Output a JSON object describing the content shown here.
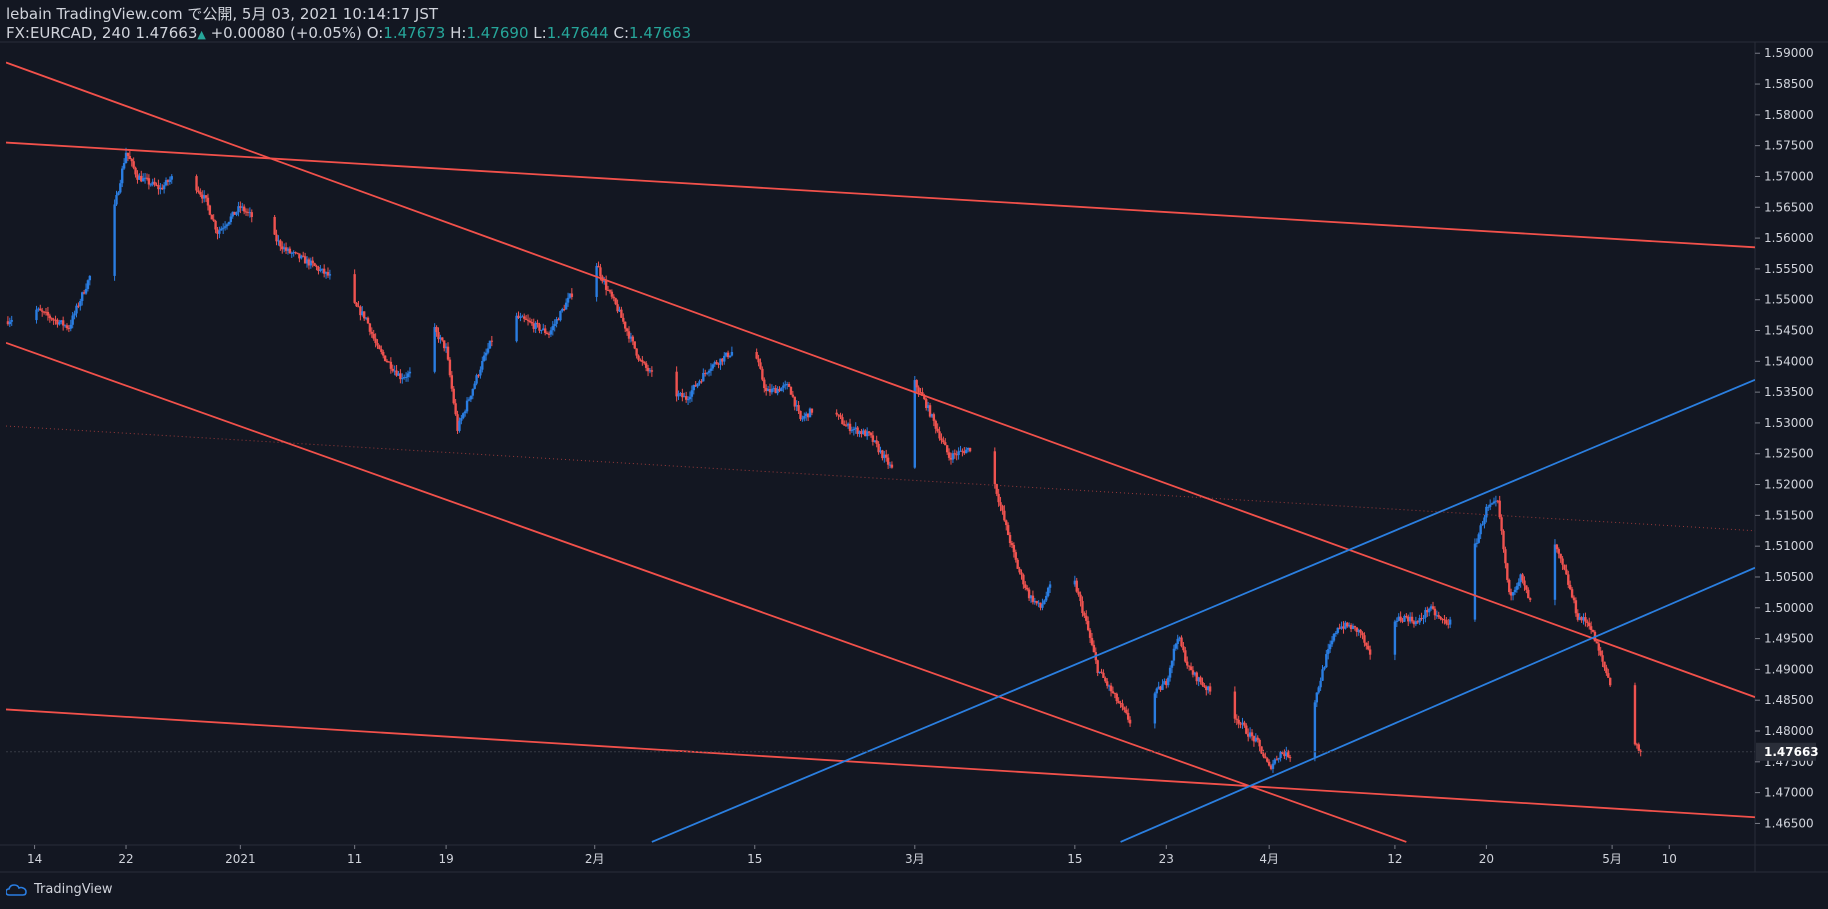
{
  "header": {
    "publisher_line": "lebain TradingView.com で公開, 5月 03, 2021 10:14:17 JST",
    "symbol_interval": "FX:EURCAD, 240",
    "last_price": "1.47663",
    "change": "+0.00080 (+0.05%)",
    "o_label": "O:",
    "o_value": "1.47673",
    "h_label": "H:",
    "h_value": "1.47690",
    "l_label": "L:",
    "l_value": "1.47644",
    "c_label": "C:",
    "c_value": "1.47663"
  },
  "footer": {
    "brand": "TradingView"
  },
  "colors": {
    "background": "#131722",
    "up": "#2a7de1",
    "down": "#ef5350",
    "red_line": "#f2514b",
    "blue_line": "#2b7fe0",
    "grid": "#2a2e39",
    "text": "#d1d4dc",
    "price_tag_bg": "#2a2e39"
  },
  "chart_data": {
    "type": "candlestick",
    "symbol": "FX:EURCAD",
    "interval": "240",
    "ylim": [
      1.4615,
      1.5915
    ],
    "price_ticks": [
      "1.59000",
      "1.58500",
      "1.58000",
      "1.57500",
      "1.57000",
      "1.56500",
      "1.56000",
      "1.55500",
      "1.55000",
      "1.54500",
      "1.54000",
      "1.53500",
      "1.53000",
      "1.52500",
      "1.52000",
      "1.51500",
      "1.51000",
      "1.50500",
      "1.50000",
      "1.49500",
      "1.49000",
      "1.48500",
      "1.48000",
      "1.47500",
      "1.47000",
      "1.46500"
    ],
    "current_price": "1.47663",
    "x_ticks": [
      {
        "label": "14",
        "day": 0
      },
      {
        "label": "22",
        "day": 8
      },
      {
        "label": "2021",
        "day": 18
      },
      {
        "label": "11",
        "day": 28
      },
      {
        "label": "19",
        "day": 36
      },
      {
        "label": "2月",
        "day": 49
      },
      {
        "label": "15",
        "day": 63
      },
      {
        "label": "3月",
        "day": 77
      },
      {
        "label": "15",
        "day": 91
      },
      {
        "label": "23",
        "day": 99
      },
      {
        "label": "4月",
        "day": 108
      },
      {
        "label": "12",
        "day": 119
      },
      {
        "label": "20",
        "day": 127
      },
      {
        "label": "5月",
        "day": 138
      },
      {
        "label": "10",
        "day": 143
      }
    ],
    "day_range": [
      -2.5,
      150.5
    ],
    "price_path": [
      [
        -2.5,
        1.5465
      ],
      [
        0,
        1.5485
      ],
      [
        3,
        1.5455
      ],
      [
        5,
        1.5545
      ],
      [
        7,
        1.565
      ],
      [
        8,
        1.574
      ],
      [
        9,
        1.57
      ],
      [
        11,
        1.568
      ],
      [
        13,
        1.5715
      ],
      [
        15,
        1.566
      ],
      [
        16,
        1.561
      ],
      [
        18,
        1.565
      ],
      [
        20,
        1.562
      ],
      [
        22,
        1.558
      ],
      [
        24,
        1.556
      ],
      [
        26,
        1.5535
      ],
      [
        28,
        1.549
      ],
      [
        29,
        1.547
      ],
      [
        30,
        1.542
      ],
      [
        32,
        1.5375
      ],
      [
        34,
        1.5385
      ],
      [
        35,
        1.545
      ],
      [
        36,
        1.542
      ],
      [
        37,
        1.529
      ],
      [
        39,
        1.539
      ],
      [
        41,
        1.548
      ],
      [
        43,
        1.5465
      ],
      [
        45,
        1.5445
      ],
      [
        47,
        1.551
      ],
      [
        48,
        1.557
      ],
      [
        49,
        1.5565
      ],
      [
        50,
        1.552
      ],
      [
        51,
        1.5485
      ],
      [
        53,
        1.54
      ],
      [
        55,
        1.5355
      ],
      [
        57,
        1.534
      ],
      [
        59,
        1.539
      ],
      [
        61,
        1.5415
      ],
      [
        63,
        1.5415
      ],
      [
        64,
        1.535
      ],
      [
        66,
        1.536
      ],
      [
        67,
        1.5305
      ],
      [
        69,
        1.5335
      ],
      [
        71,
        1.5295
      ],
      [
        73,
        1.528
      ],
      [
        75,
        1.5225
      ],
      [
        76,
        1.53
      ],
      [
        77,
        1.5365
      ],
      [
        78,
        1.533
      ],
      [
        80,
        1.5245
      ],
      [
        82,
        1.526
      ],
      [
        84,
        1.52
      ],
      [
        85,
        1.513
      ],
      [
        86,
        1.5065
      ],
      [
        87,
        1.502
      ],
      [
        88,
        1.5
      ],
      [
        89,
        1.504
      ],
      [
        90,
        1.505
      ],
      [
        91,
        1.504
      ],
      [
        92,
        1.4975
      ],
      [
        93,
        1.49
      ],
      [
        94,
        1.487
      ],
      [
        95,
        1.484
      ],
      [
        96,
        1.481
      ],
      [
        97,
        1.485
      ],
      [
        98,
        1.486
      ],
      [
        99,
        1.488
      ],
      [
        100,
        1.4955
      ],
      [
        101,
        1.49
      ],
      [
        103,
        1.486
      ],
      [
        104,
        1.484
      ],
      [
        105,
        1.4825
      ],
      [
        106,
        1.48
      ],
      [
        107,
        1.478
      ],
      [
        108,
        1.474
      ],
      [
        109,
        1.4765
      ],
      [
        110,
        1.476
      ],
      [
        111,
        1.4785
      ],
      [
        112,
        1.485
      ],
      [
        113,
        1.492
      ],
      [
        114,
        1.497
      ],
      [
        115,
        1.497
      ],
      [
        116,
        1.496
      ],
      [
        117,
        1.491
      ],
      [
        118,
        1.495
      ],
      [
        119,
        1.498
      ],
      [
        120,
        1.4985
      ],
      [
        121,
        1.4975
      ],
      [
        122,
        1.5
      ],
      [
        123,
        1.498
      ],
      [
        124,
        1.4975
      ],
      [
        125,
        1.508
      ],
      [
        126,
        1.51
      ],
      [
        127,
        1.516
      ],
      [
        128,
        1.517
      ],
      [
        129,
        1.502
      ],
      [
        130,
        1.505
      ],
      [
        131,
        1.5
      ],
      [
        132,
        1.5045
      ],
      [
        133,
        1.51
      ],
      [
        134,
        1.505
      ],
      [
        135,
        1.4985
      ],
      [
        136,
        1.4975
      ],
      [
        137,
        1.492
      ],
      [
        138,
        1.487
      ],
      [
        139,
        1.483
      ],
      [
        140,
        1.478
      ],
      [
        140.5,
        1.4766
      ]
    ],
    "trend_lines": [
      {
        "color": "red",
        "p1": [
          -2.5,
          1.5885
        ],
        "p2": [
          150.5,
          1.4855
        ]
      },
      {
        "color": "red",
        "p1": [
          -2.5,
          1.5755
        ],
        "p2": [
          150.5,
          1.5585
        ]
      },
      {
        "color": "red",
        "p1": [
          -2.5,
          1.543
        ],
        "p2": [
          120,
          1.462
        ]
      },
      {
        "color": "red",
        "p1": [
          -2.5,
          1.4835
        ],
        "p2": [
          150.5,
          1.466
        ]
      },
      {
        "color": "blue",
        "p1": [
          54,
          1.462
        ],
        "p2": [
          150.5,
          1.537
        ]
      },
      {
        "color": "blue",
        "p1": [
          95,
          1.462
        ],
        "p2": [
          150.5,
          1.5065
        ]
      },
      {
        "color": "red-dotted",
        "p1": [
          -2.5,
          1.5295
        ],
        "p2": [
          150.5,
          1.5125
        ]
      }
    ]
  }
}
